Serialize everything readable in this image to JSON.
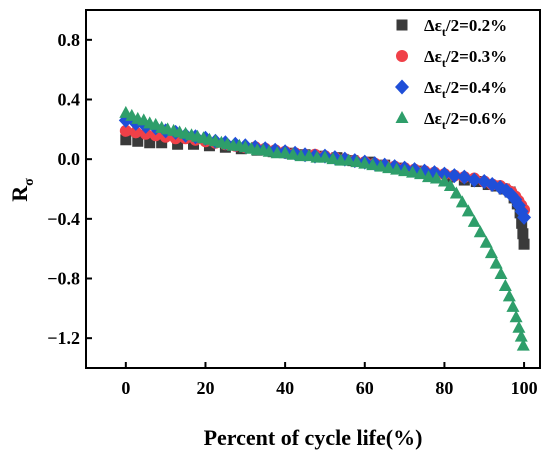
{
  "chart_data": {
    "type": "scatter",
    "xlabel": "Percent of cycle life(%)",
    "ylabel": "R",
    "ylabel_subscript": "σ",
    "xlim": [
      -10,
      104
    ],
    "ylim": [
      -1.4,
      1.0
    ],
    "xticks": [
      0,
      20,
      40,
      60,
      80,
      100
    ],
    "yticks": [
      0.8,
      0.4,
      0.0,
      -0.4,
      -0.8,
      -1.2
    ],
    "xtick_labels": [
      "0",
      "20",
      "40",
      "60",
      "80",
      "100"
    ],
    "ytick_labels": [
      "0.8",
      "0.4",
      "0.0",
      "−0.4",
      "−0.8",
      "−1.2"
    ],
    "grid": false,
    "legend_position": "top-right",
    "series": [
      {
        "name": "Δε_t/2=0.2%",
        "legend": {
          "pre": "Δε",
          "sub": "t",
          "post": "/2=0.2%"
        },
        "marker": "square",
        "color": "#3a3a3a",
        "points": [
          [
            0,
            0.13
          ],
          [
            3,
            0.12
          ],
          [
            6,
            0.11
          ],
          [
            9,
            0.11
          ],
          [
            13,
            0.1
          ],
          [
            17,
            0.1
          ],
          [
            21,
            0.09
          ],
          [
            25,
            0.08
          ],
          [
            29,
            0.07
          ],
          [
            33,
            0.06
          ],
          [
            37,
            0.05
          ],
          [
            41,
            0.04
          ],
          [
            45,
            0.03
          ],
          [
            49,
            0.02
          ],
          [
            53,
            0.01
          ],
          [
            57,
            -0.01
          ],
          [
            61,
            -0.02
          ],
          [
            65,
            -0.04
          ],
          [
            69,
            -0.06
          ],
          [
            73,
            -0.08
          ],
          [
            77,
            -0.1
          ],
          [
            81,
            -0.12
          ],
          [
            85,
            -0.14
          ],
          [
            88,
            -0.15
          ],
          [
            91,
            -0.17
          ],
          [
            93,
            -0.18
          ],
          [
            95,
            -0.2
          ],
          [
            96.5,
            -0.22
          ],
          [
            97.5,
            -0.26
          ],
          [
            98.3,
            -0.3
          ],
          [
            99,
            -0.36
          ],
          [
            99.4,
            -0.43
          ],
          [
            99.7,
            -0.5
          ],
          [
            100,
            -0.57
          ]
        ]
      },
      {
        "name": "Δε_t/2=0.3%",
        "legend": {
          "pre": "Δε",
          "sub": "t",
          "post": "/2=0.3%"
        },
        "marker": "circle",
        "color": "#f04048",
        "points": [
          [
            0,
            0.19
          ],
          [
            2.5,
            0.18
          ],
          [
            5,
            0.17
          ],
          [
            7.5,
            0.16
          ],
          [
            10,
            0.15
          ],
          [
            12.5,
            0.14
          ],
          [
            15,
            0.14
          ],
          [
            17.5,
            0.13
          ],
          [
            20,
            0.12
          ],
          [
            22.5,
            0.11
          ],
          [
            25,
            0.1
          ],
          [
            27.5,
            0.09
          ],
          [
            30,
            0.08
          ],
          [
            32.5,
            0.08
          ],
          [
            35,
            0.07
          ],
          [
            37.5,
            0.06
          ],
          [
            40,
            0.05
          ],
          [
            42.5,
            0.04
          ],
          [
            45,
            0.03
          ],
          [
            47.5,
            0.03
          ],
          [
            50,
            0.02
          ],
          [
            52.5,
            0.01
          ],
          [
            55,
            0.0
          ],
          [
            57.5,
            -0.01
          ],
          [
            60,
            -0.02
          ],
          [
            62.5,
            -0.03
          ],
          [
            65,
            -0.04
          ],
          [
            67.5,
            -0.05
          ],
          [
            70,
            -0.06
          ],
          [
            72.5,
            -0.07
          ],
          [
            75,
            -0.08
          ],
          [
            77.5,
            -0.09
          ],
          [
            80,
            -0.1
          ],
          [
            82.5,
            -0.11
          ],
          [
            85,
            -0.12
          ],
          [
            87.5,
            -0.13
          ],
          [
            90,
            -0.15
          ],
          [
            92,
            -0.17
          ],
          [
            94,
            -0.18
          ],
          [
            95.5,
            -0.2
          ],
          [
            96.8,
            -0.22
          ],
          [
            97.8,
            -0.25
          ],
          [
            98.6,
            -0.28
          ],
          [
            99.3,
            -0.31
          ],
          [
            100,
            -0.34
          ]
        ]
      },
      {
        "name": "Δε_t/2=0.4%",
        "legend": {
          "pre": "Δε",
          "sub": "t",
          "post": "/2=0.4%"
        },
        "marker": "diamond",
        "color": "#1f4fd8",
        "points": [
          [
            0,
            0.26
          ],
          [
            2.5,
            0.24
          ],
          [
            5,
            0.22
          ],
          [
            7.5,
            0.21
          ],
          [
            10,
            0.19
          ],
          [
            12.5,
            0.18
          ],
          [
            15,
            0.16
          ],
          [
            17.5,
            0.15
          ],
          [
            20,
            0.14
          ],
          [
            22.5,
            0.12
          ],
          [
            25,
            0.11
          ],
          [
            27.5,
            0.1
          ],
          [
            30,
            0.09
          ],
          [
            32.5,
            0.08
          ],
          [
            35,
            0.07
          ],
          [
            37.5,
            0.06
          ],
          [
            40,
            0.05
          ],
          [
            42.5,
            0.04
          ],
          [
            45,
            0.03
          ],
          [
            47.5,
            0.02
          ],
          [
            50,
            0.02
          ],
          [
            52.5,
            0.01
          ],
          [
            55,
            0.0
          ],
          [
            57.5,
            -0.01
          ],
          [
            60,
            -0.02
          ],
          [
            62.5,
            -0.03
          ],
          [
            65,
            -0.04
          ],
          [
            67.5,
            -0.05
          ],
          [
            70,
            -0.06
          ],
          [
            72.5,
            -0.07
          ],
          [
            75,
            -0.08
          ],
          [
            77.5,
            -0.09
          ],
          [
            80,
            -0.1
          ],
          [
            82.5,
            -0.11
          ],
          [
            85,
            -0.12
          ],
          [
            87.5,
            -0.14
          ],
          [
            90,
            -0.15
          ],
          [
            92,
            -0.17
          ],
          [
            94,
            -0.19
          ],
          [
            95.5,
            -0.21
          ],
          [
            96.8,
            -0.24
          ],
          [
            97.8,
            -0.27
          ],
          [
            98.7,
            -0.31
          ],
          [
            99.4,
            -0.35
          ],
          [
            100,
            -0.39
          ]
        ]
      },
      {
        "name": "Δε_t/2=0.6%",
        "legend": {
          "pre": "Δε",
          "sub": "t",
          "post": "/2=0.6%"
        },
        "marker": "triangle",
        "color": "#2e9e6a",
        "points": [
          [
            0,
            0.31
          ],
          [
            1.5,
            0.29
          ],
          [
            3,
            0.27
          ],
          [
            4.5,
            0.26
          ],
          [
            6,
            0.24
          ],
          [
            7.5,
            0.23
          ],
          [
            9,
            0.21
          ],
          [
            10.5,
            0.2
          ],
          [
            12,
            0.19
          ],
          [
            13.5,
            0.18
          ],
          [
            15,
            0.17
          ],
          [
            16.5,
            0.16
          ],
          [
            18,
            0.15
          ],
          [
            19.5,
            0.14
          ],
          [
            21,
            0.13
          ],
          [
            22.5,
            0.12
          ],
          [
            24,
            0.11
          ],
          [
            25.5,
            0.1
          ],
          [
            27,
            0.09
          ],
          [
            28.5,
            0.09
          ],
          [
            30,
            0.08
          ],
          [
            31.5,
            0.07
          ],
          [
            33,
            0.06
          ],
          [
            34.5,
            0.06
          ],
          [
            36,
            0.05
          ],
          [
            38,
            0.04
          ],
          [
            40,
            0.04
          ],
          [
            42,
            0.03
          ],
          [
            44,
            0.02
          ],
          [
            46,
            0.02
          ],
          [
            48,
            0.01
          ],
          [
            50,
            0.01
          ],
          [
            52,
            0.0
          ],
          [
            54,
            -0.01
          ],
          [
            56,
            -0.01
          ],
          [
            58,
            -0.02
          ],
          [
            60,
            -0.03
          ],
          [
            62,
            -0.04
          ],
          [
            64,
            -0.05
          ],
          [
            66,
            -0.06
          ],
          [
            68,
            -0.07
          ],
          [
            70,
            -0.08
          ],
          [
            72,
            -0.09
          ],
          [
            74,
            -0.1
          ],
          [
            76,
            -0.12
          ],
          [
            78,
            -0.13
          ],
          [
            80,
            -0.15
          ],
          [
            81.5,
            -0.18
          ],
          [
            83,
            -0.23
          ],
          [
            84.5,
            -0.29
          ],
          [
            86,
            -0.35
          ],
          [
            87.5,
            -0.42
          ],
          [
            89,
            -0.49
          ],
          [
            90.5,
            -0.56
          ],
          [
            91.8,
            -0.63
          ],
          [
            93,
            -0.7
          ],
          [
            94.2,
            -0.77
          ],
          [
            95.3,
            -0.85
          ],
          [
            96.3,
            -0.92
          ],
          [
            97.2,
            -0.99
          ],
          [
            98,
            -1.06
          ],
          [
            98.7,
            -1.13
          ],
          [
            99.3,
            -1.19
          ],
          [
            99.8,
            -1.25
          ]
        ]
      }
    ]
  }
}
